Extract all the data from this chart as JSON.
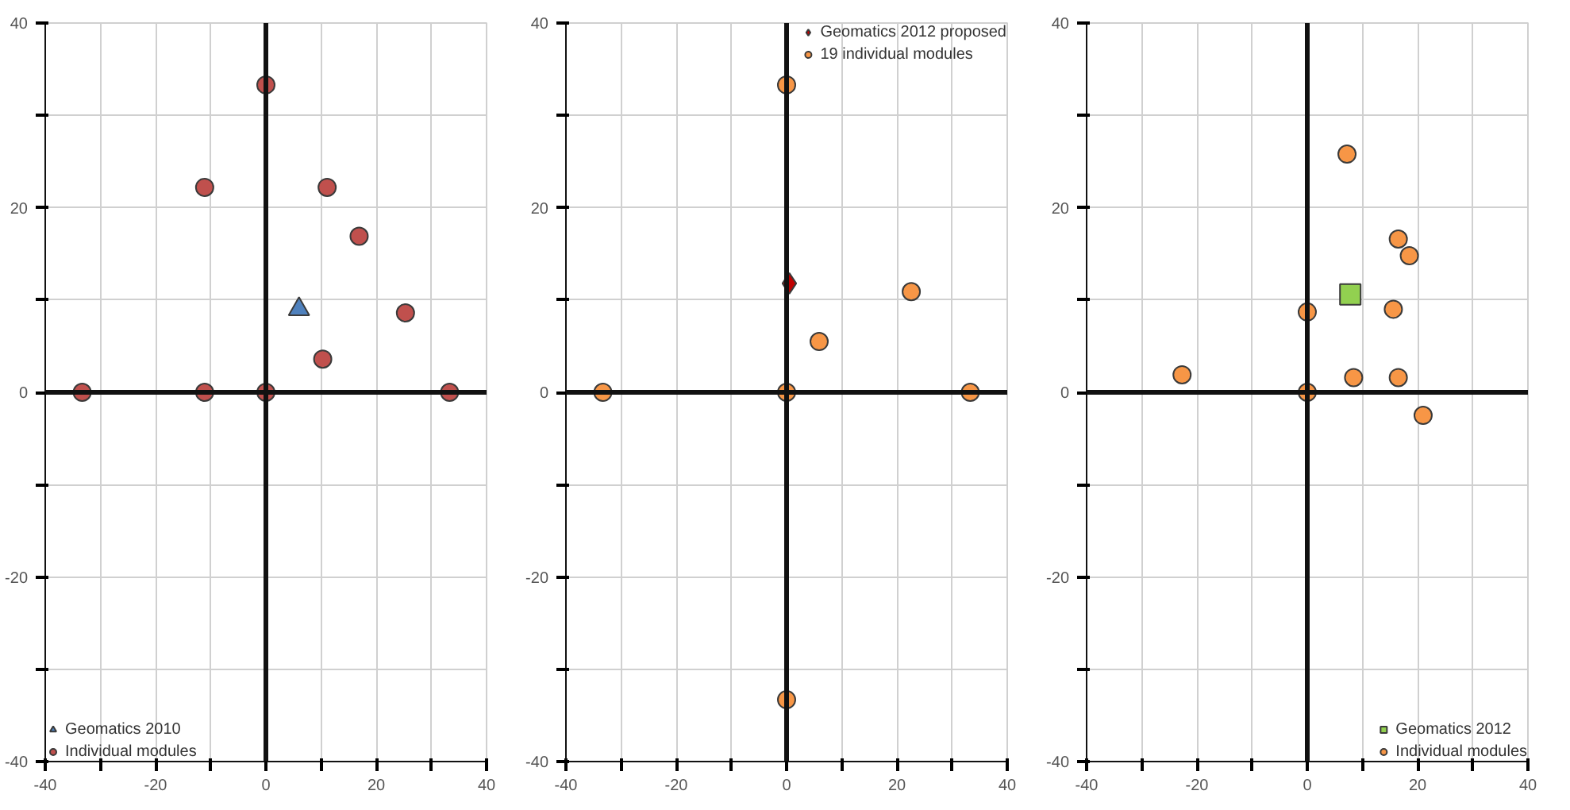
{
  "chart_data": [
    {
      "type": "scatter",
      "xlim": [
        -40,
        40
      ],
      "ylim": [
        -40,
        40
      ],
      "xticks": [
        -40,
        {
          "value": -30,
          "label": null
        },
        -20,
        {
          "value": -10,
          "label": null
        },
        0,
        {
          "value": 10,
          "label": null
        },
        20,
        {
          "value": 30,
          "label": null
        },
        40
      ],
      "yticks": [
        -40,
        {
          "value": -30,
          "label": null
        },
        -20,
        {
          "value": -10,
          "label": null
        },
        0,
        {
          "value": 10,
          "label": null
        },
        20,
        {
          "value": 30,
          "label": null
        },
        40
      ],
      "grid": true,
      "legend": "bottom left",
      "series": [
        {
          "name": "Geomatics 2010",
          "color": "#4f81bd",
          "marker": "triangle",
          "x": [
            6
          ],
          "values": [
            9
          ]
        },
        {
          "name": "Individual modules",
          "color": "#c0504d",
          "marker": "circle",
          "x": [
            -33.3,
            -11.1,
            -11.1,
            0,
            0,
            11.1,
            16.9,
            25.3,
            10.3,
            33.3
          ],
          "values": [
            0,
            0,
            22.2,
            33.3,
            0,
            22.2,
            16.9,
            8.6,
            3.6,
            0
          ]
        }
      ]
    },
    {
      "type": "scatter",
      "xlim": [
        -40,
        40
      ],
      "ylim": [
        -40,
        40
      ],
      "xticks": [
        -40,
        {
          "value": -30,
          "label": null
        },
        -20,
        {
          "value": -10,
          "label": null
        },
        0,
        {
          "value": 10,
          "label": null
        },
        20,
        {
          "value": 30,
          "label": null
        },
        40
      ],
      "yticks": [
        -40,
        {
          "value": -30,
          "label": null
        },
        -20,
        {
          "value": -10,
          "label": null
        },
        0,
        {
          "value": 10,
          "label": null
        },
        20,
        {
          "value": 30,
          "label": null
        },
        40
      ],
      "grid": true,
      "legend": "top right",
      "series": [
        {
          "name": "Geomatics 2012 proposed",
          "color": "#c00000",
          "marker": "diamond",
          "x": [
            0.5
          ],
          "values": [
            11.8
          ]
        },
        {
          "name": "19 individual modules",
          "color": "#f79646",
          "marker": "circle",
          "x": [
            0,
            5.9,
            22.6,
            -33.3,
            0,
            33.3,
            0
          ],
          "values": [
            33.3,
            5.5,
            10.9,
            0,
            0,
            0,
            -33.3
          ]
        }
      ]
    },
    {
      "type": "scatter",
      "xlim": [
        -40,
        40
      ],
      "ylim": [
        -40,
        40
      ],
      "xticks": [
        -40,
        {
          "value": -30,
          "label": null
        },
        -20,
        {
          "value": -10,
          "label": null
        },
        0,
        {
          "value": 10,
          "label": null
        },
        20,
        {
          "value": 30,
          "label": null
        },
        40
      ],
      "yticks": [
        -40,
        {
          "value": -30,
          "label": null
        },
        -20,
        {
          "value": -10,
          "label": null
        },
        0,
        {
          "value": 10,
          "label": null
        },
        20,
        {
          "value": 30,
          "label": null
        },
        40
      ],
      "grid": true,
      "legend": "bottom right",
      "series": [
        {
          "name": "Geomatics 2012",
          "color": "#92d050",
          "marker": "square",
          "x": [
            7.8
          ],
          "values": [
            10.6
          ]
        },
        {
          "name": "Individual modules",
          "color": "#f79646",
          "marker": "circle",
          "x": [
            -22.7,
            0,
            0,
            7.2,
            8.4,
            15.6,
            16.5,
            18.5,
            16.5,
            21.0
          ],
          "values": [
            1.9,
            8.7,
            0,
            25.8,
            1.6,
            9.0,
            16.6,
            14.8,
            1.6,
            -2.5
          ]
        }
      ]
    }
  ]
}
